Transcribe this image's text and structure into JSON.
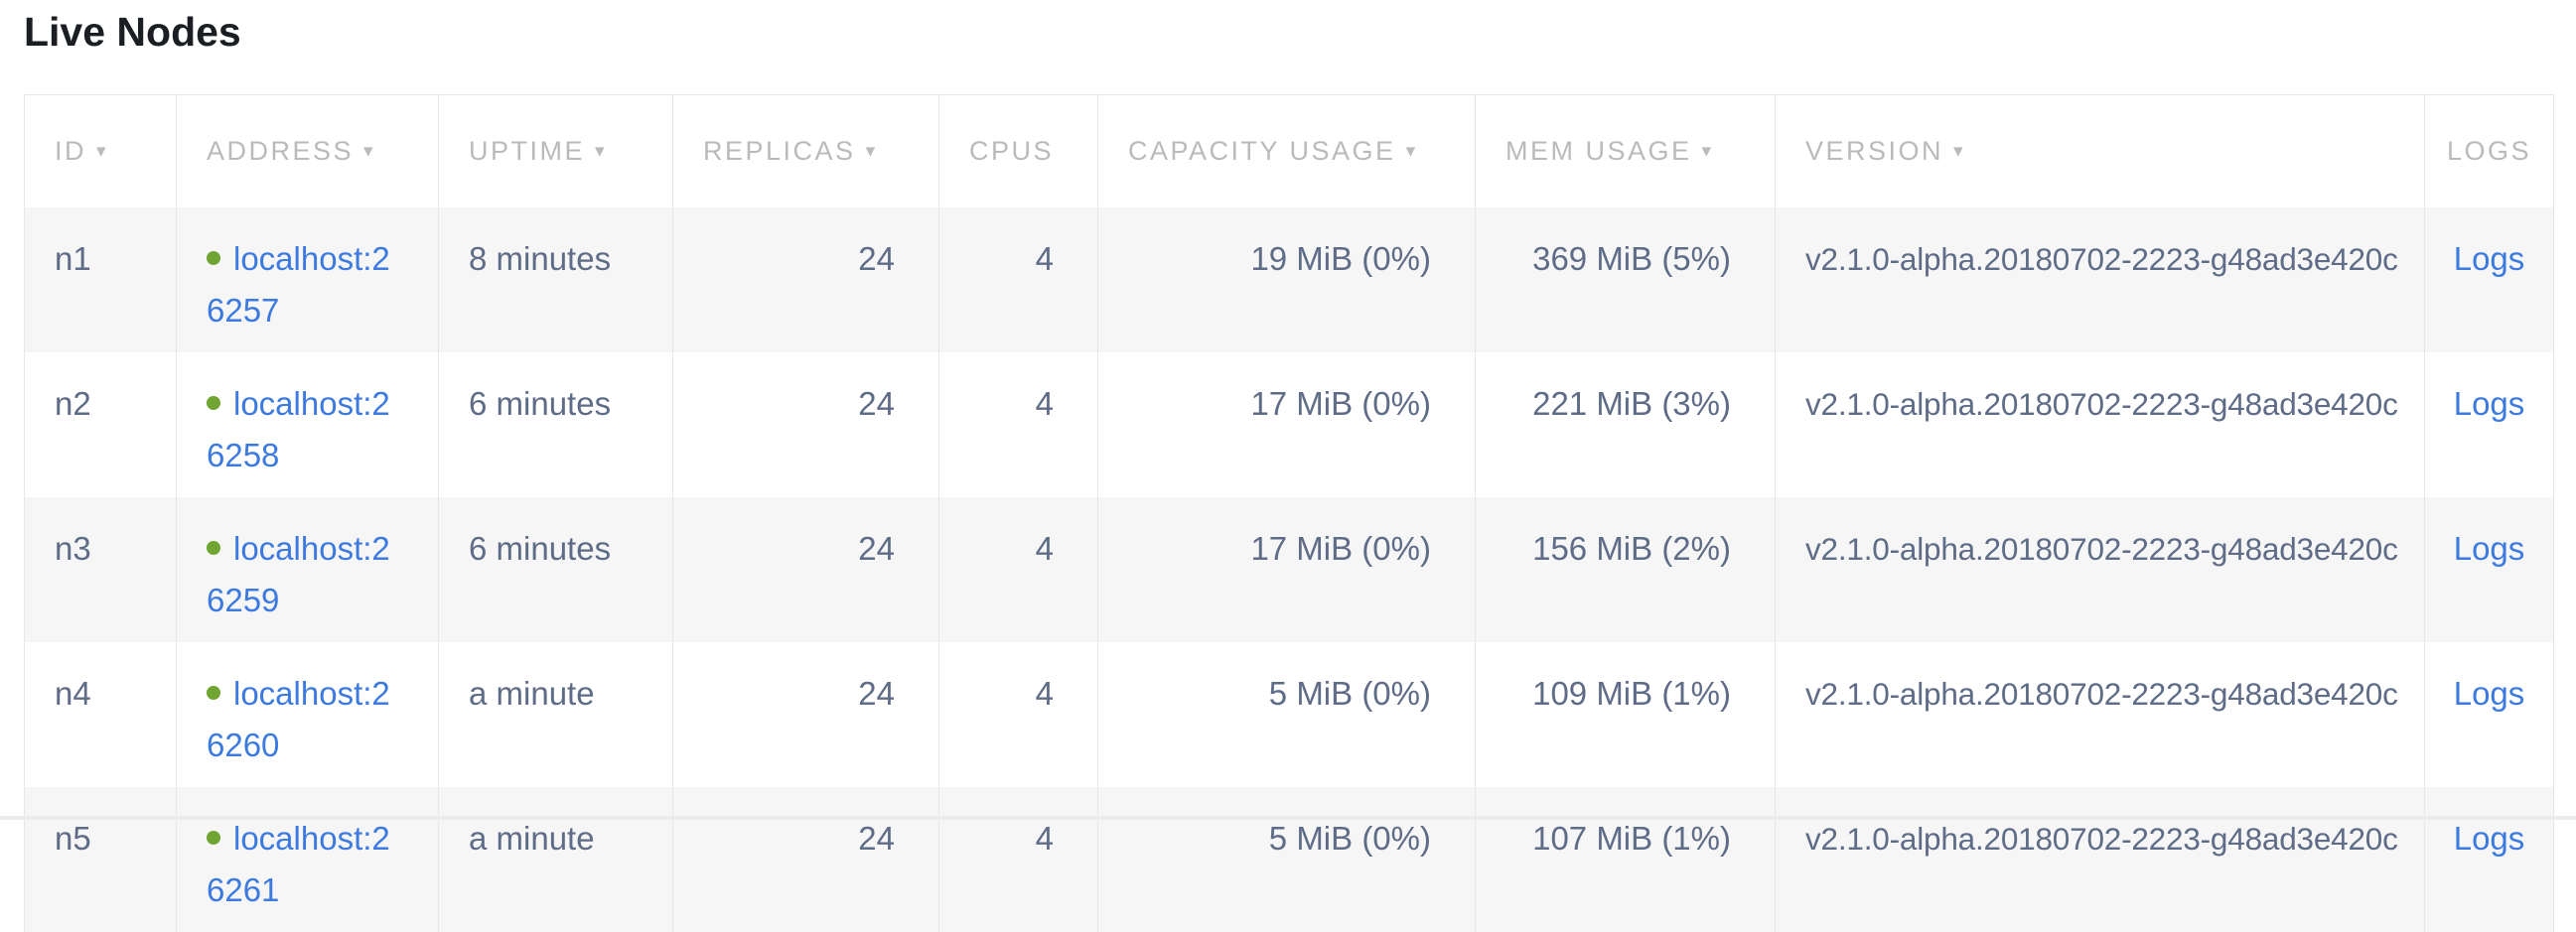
{
  "page": {
    "title": "Live Nodes"
  },
  "icons": {
    "sort_arrow": "▾"
  },
  "colors": {
    "title_text": "#1b1e23",
    "header_text": "#b9babc",
    "cell_text": "#5f6c87",
    "link_blue": "#3d7ae0",
    "dot_green": "#70a533",
    "stripe": "#f6f6f6",
    "divider": "#e7e7e7",
    "bottom_strip": "#e9ecef"
  },
  "table": {
    "columns": [
      {
        "label": "ID",
        "sortable": true
      },
      {
        "label": "ADDRESS",
        "sortable": true
      },
      {
        "label": "UPTIME",
        "sortable": true
      },
      {
        "label": "REPLICAS",
        "sortable": true
      },
      {
        "label": "CPUS",
        "sortable": false
      },
      {
        "label": "CAPACITY USAGE",
        "sortable": true
      },
      {
        "label": "MEM USAGE",
        "sortable": true
      },
      {
        "label": "VERSION",
        "sortable": true
      },
      {
        "label": "LOGS",
        "sortable": false
      }
    ],
    "rows": [
      {
        "id": "n1",
        "address": "localhost:26257",
        "uptime": "8 minutes",
        "replicas": "24",
        "cpus": "4",
        "capacity": "19 MiB (0%)",
        "mem": "369 MiB (5%)",
        "version": "v2.1.0-alpha.20180702-2223-g48ad3e420c",
        "logs_label": "Logs"
      },
      {
        "id": "n2",
        "address": "localhost:26258",
        "uptime": "6 minutes",
        "replicas": "24",
        "cpus": "4",
        "capacity": "17 MiB (0%)",
        "mem": "221 MiB (3%)",
        "version": "v2.1.0-alpha.20180702-2223-g48ad3e420c",
        "logs_label": "Logs"
      },
      {
        "id": "n3",
        "address": "localhost:26259",
        "uptime": "6 minutes",
        "replicas": "24",
        "cpus": "4",
        "capacity": "17 MiB (0%)",
        "mem": "156 MiB (2%)",
        "version": "v2.1.0-alpha.20180702-2223-g48ad3e420c",
        "logs_label": "Logs"
      },
      {
        "id": "n4",
        "address": "localhost:26260",
        "uptime": "a minute",
        "replicas": "24",
        "cpus": "4",
        "capacity": "5 MiB (0%)",
        "mem": "109 MiB (1%)",
        "version": "v2.1.0-alpha.20180702-2223-g48ad3e420c",
        "logs_label": "Logs"
      },
      {
        "id": "n5",
        "address": "localhost:26261",
        "uptime": "a minute",
        "replicas": "24",
        "cpus": "4",
        "capacity": "5 MiB (0%)",
        "mem": "107 MiB (1%)",
        "version": "v2.1.0-alpha.20180702-2223-g48ad3e420c",
        "logs_label": "Logs"
      }
    ]
  }
}
